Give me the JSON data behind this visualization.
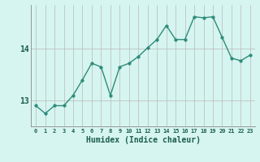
{
  "xlabel": "Humidex (Indice chaleur)",
  "x": [
    0,
    1,
    2,
    3,
    4,
    5,
    6,
    7,
    8,
    9,
    10,
    11,
    12,
    13,
    14,
    15,
    16,
    17,
    18,
    19,
    20,
    21,
    22,
    23
  ],
  "y": [
    12.9,
    12.75,
    12.9,
    12.9,
    13.1,
    13.4,
    13.72,
    13.65,
    13.1,
    13.65,
    13.72,
    13.85,
    14.02,
    14.18,
    14.45,
    14.18,
    14.18,
    14.62,
    14.6,
    14.62,
    14.22,
    13.82,
    13.77,
    13.88
  ],
  "line_color": "#2e8b7a",
  "marker_size": 2.5,
  "line_width": 1.0,
  "background_color": "#d6f5f0",
  "grid_color": "#b8b8b8",
  "tick_color": "#1a5c4e",
  "label_color": "#1a5c4e",
  "yticks": [
    13,
    14
  ],
  "ylim": [
    12.5,
    14.85
  ],
  "xlim": [
    -0.5,
    23.5
  ],
  "title_fontsize": 7,
  "xlabel_fontsize": 7,
  "ytick_fontsize": 7,
  "xtick_fontsize": 5
}
